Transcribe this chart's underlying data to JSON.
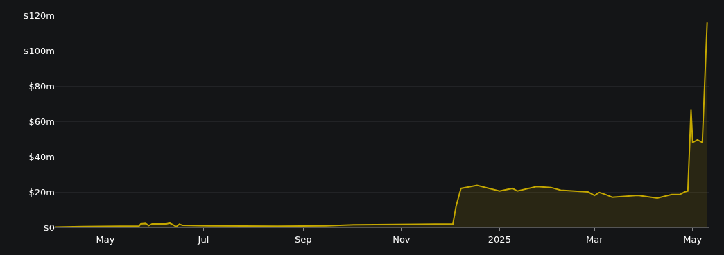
{
  "chart_data": {
    "type": "area",
    "x": [
      "2024-03-31",
      "2024-04-17",
      "2024-05-22",
      "2024-05-23",
      "2024-05-26",
      "2024-05-28",
      "2024-05-30",
      "2024-06-08",
      "2024-06-10",
      "2024-06-12",
      "2024-06-14",
      "2024-06-16",
      "2024-06-18",
      "2024-07-04",
      "2024-08-16",
      "2024-09-15",
      "2024-10-03",
      "2024-11-11",
      "2024-12-03",
      "2024-12-05",
      "2024-12-08",
      "2024-12-18",
      "2025-01-01",
      "2025-01-09",
      "2025-01-12",
      "2025-01-24",
      "2025-02-02",
      "2025-02-08",
      "2025-02-25",
      "2025-03-01",
      "2025-03-04",
      "2025-03-08",
      "2025-03-12",
      "2025-03-28",
      "2025-04-09",
      "2025-04-18",
      "2025-04-23",
      "2025-04-26",
      "2025-04-28",
      "2025-04-30",
      "2025-05-01",
      "2025-05-04",
      "2025-05-07",
      "2025-05-10"
    ],
    "series": [
      {
        "color": "#c4a700",
        "values": [
          0.2,
          0.5,
          0.8,
          2.0,
          2.2,
          1.0,
          2.0,
          2.0,
          2.4,
          1.5,
          0.4,
          1.8,
          1.2,
          0.9,
          0.7,
          0.9,
          1.5,
          1.8,
          2.0,
          12,
          22,
          23.7,
          20.5,
          22,
          20.5,
          23,
          22.5,
          21,
          20,
          18,
          19.7,
          18.5,
          17,
          18,
          16.5,
          18.5,
          18.5,
          20,
          20.5,
          66.5,
          48,
          49.5,
          48,
          116
        ]
      }
    ],
    "xlim": [
      "2024-03-31",
      "2025-05-11"
    ],
    "xticks": [
      {
        "value": "2024-05-01",
        "label": "May"
      },
      {
        "value": "2024-07-01",
        "label": "Jul"
      },
      {
        "value": "2024-09-01",
        "label": "Sep"
      },
      {
        "value": "2024-11-01",
        "label": "Nov"
      },
      {
        "value": "2025-01-01",
        "label": "2025"
      },
      {
        "value": "2025-03-01",
        "label": "Mar"
      },
      {
        "value": "2025-05-01",
        "label": "May"
      }
    ],
    "ylim": [
      0,
      120
    ],
    "yticks": [
      {
        "value": 0,
        "label": "$0"
      },
      {
        "value": 20,
        "label": "$20m"
      },
      {
        "value": 40,
        "label": "$40m"
      },
      {
        "value": 60,
        "label": "$60m"
      },
      {
        "value": 80,
        "label": "$80m"
      },
      {
        "value": 100,
        "label": "$100m"
      },
      {
        "value": 120,
        "label": "$120m"
      }
    ],
    "grid": "y",
    "marker": "none",
    "line_style": "solid"
  }
}
